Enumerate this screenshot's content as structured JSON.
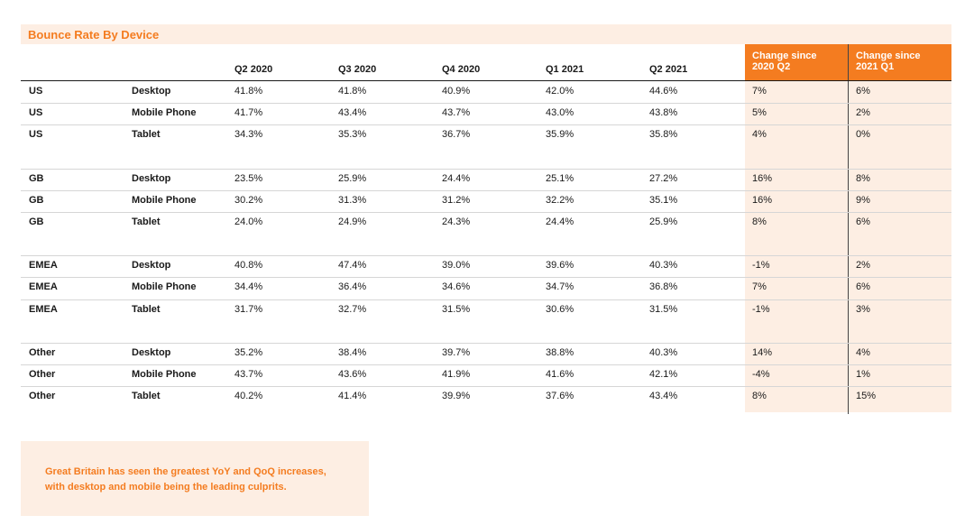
{
  "chart_data": {
    "type": "table",
    "title": "Bounce Rate By Device",
    "columns": [
      "Q2 2020",
      "Q3 2020",
      "Q4 2020",
      "Q1 2021",
      "Q2 2021",
      "Change since 2020 Q2",
      "Change since 2021 Q1"
    ],
    "change_headers": [
      {
        "line1": "Change since",
        "line2": "2020 Q2"
      },
      {
        "line1": "Change since",
        "line2": "2021 Q1"
      }
    ],
    "groups": [
      {
        "region": "US",
        "rows": [
          {
            "region": "US",
            "device": "Desktop",
            "values": [
              "41.8%",
              "41.8%",
              "40.9%",
              "42.0%",
              "44.6%",
              "7%",
              "6%"
            ]
          },
          {
            "region": "US",
            "device": "Mobile Phone",
            "values": [
              "41.7%",
              "43.4%",
              "43.7%",
              "43.0%",
              "43.8%",
              "5%",
              "2%"
            ]
          },
          {
            "region": "US",
            "device": "Tablet",
            "values": [
              "34.3%",
              "35.3%",
              "36.7%",
              "35.9%",
              "35.8%",
              "4%",
              "0%"
            ]
          }
        ]
      },
      {
        "region": "GB",
        "rows": [
          {
            "region": "GB",
            "device": "Desktop",
            "values": [
              "23.5%",
              "25.9%",
              "24.4%",
              "25.1%",
              "27.2%",
              "16%",
              "8%"
            ]
          },
          {
            "region": "GB",
            "device": "Mobile Phone",
            "values": [
              "30.2%",
              "31.3%",
              "31.2%",
              "32.2%",
              "35.1%",
              "16%",
              "9%"
            ]
          },
          {
            "region": "GB",
            "device": "Tablet",
            "values": [
              "24.0%",
              "24.9%",
              "24.3%",
              "24.4%",
              "25.9%",
              "8%",
              "6%"
            ]
          }
        ]
      },
      {
        "region": "EMEA",
        "rows": [
          {
            "region": "EMEA",
            "device": "Desktop",
            "values": [
              "40.8%",
              "47.4%",
              "39.0%",
              "39.6%",
              "40.3%",
              "-1%",
              "2%"
            ]
          },
          {
            "region": "EMEA",
            "device": "Mobile Phone",
            "values": [
              "34.4%",
              "36.4%",
              "34.6%",
              "34.7%",
              "36.8%",
              "7%",
              "6%"
            ]
          },
          {
            "region": "EMEA",
            "device": "Tablet",
            "values": [
              "31.7%",
              "32.7%",
              "31.5%",
              "30.6%",
              "31.5%",
              "-1%",
              "3%"
            ]
          }
        ]
      },
      {
        "region": "Other",
        "rows": [
          {
            "region": "Other",
            "device": "Desktop",
            "values": [
              "35.2%",
              "38.4%",
              "39.7%",
              "38.8%",
              "40.3%",
              "14%",
              "4%"
            ]
          },
          {
            "region": "Other",
            "device": "Mobile Phone",
            "values": [
              "43.7%",
              "43.6%",
              "41.9%",
              "41.6%",
              "42.1%",
              "-4%",
              "1%"
            ]
          },
          {
            "region": "Other",
            "device": "Tablet",
            "values": [
              "40.2%",
              "41.4%",
              "39.9%",
              "37.6%",
              "43.4%",
              "8%",
              "15%"
            ]
          }
        ]
      }
    ]
  },
  "note": {
    "line1": "Great Britain has seen the greatest YoY and QoQ increases,",
    "line2": "with desktop and mobile being the leading culprits."
  },
  "colors": {
    "accent": "#f47c20",
    "highlight_bg": "#fdeee3"
  }
}
